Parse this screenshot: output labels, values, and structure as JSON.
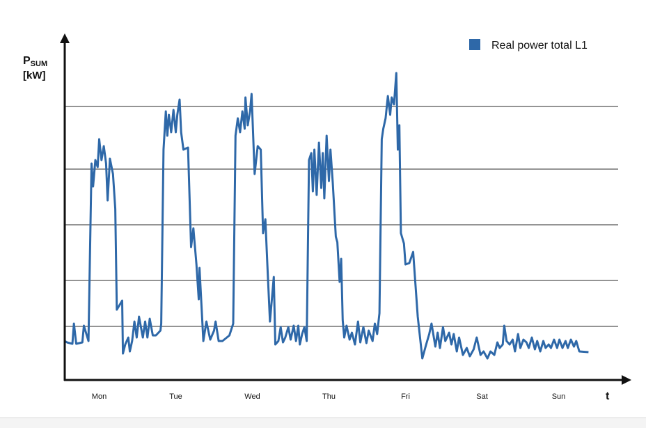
{
  "chart_data": {
    "type": "line",
    "ylabel": {
      "text": "P",
      "sub": "SUM",
      "unit": "[kW]"
    },
    "xlabel": "t",
    "xlim": [
      0,
      7.36
    ],
    "xticks": [
      {
        "value": 0.45,
        "label": "Mon"
      },
      {
        "value": 1.45,
        "label": "Tue"
      },
      {
        "value": 2.45,
        "label": "Wed"
      },
      {
        "value": 3.45,
        "label": "Thu"
      },
      {
        "value": 4.45,
        "label": "Fri"
      },
      {
        "value": 5.45,
        "label": "Sat"
      },
      {
        "value": 6.45,
        "label": "Sun"
      }
    ],
    "ylim": [
      0,
      98
    ],
    "yticks": [
      15.4,
      28.6,
      44.6,
      60.6,
      78.6
    ],
    "grid": true,
    "legend": "top-right",
    "x": [
      0,
      0.03,
      0.1,
      0.12,
      0.15,
      0.23,
      0.25,
      0.31,
      0.35,
      0.37,
      0.4,
      0.43,
      0.45,
      0.48,
      0.51,
      0.54,
      0.56,
      0.59,
      0.63,
      0.66,
      0.68,
      0.75,
      0.76,
      0.79,
      0.83,
      0.85,
      0.88,
      0.91,
      0.94,
      0.97,
      1.02,
      1.05,
      1.08,
      1.11,
      1.15,
      1.19,
      1.25,
      1.26,
      1.29,
      1.32,
      1.34,
      1.36,
      1.39,
      1.42,
      1.45,
      1.47,
      1.5,
      1.52,
      1.55,
      1.61,
      1.65,
      1.68,
      1.72,
      1.75,
      1.76,
      1.81,
      1.85,
      1.9,
      1.95,
      1.97,
      2.01,
      2.06,
      2.15,
      2.2,
      2.23,
      2.26,
      2.29,
      2.32,
      2.35,
      2.36,
      2.39,
      2.42,
      2.44,
      2.48,
      2.52,
      2.56,
      2.59,
      2.62,
      2.65,
      2.68,
      2.73,
      2.75,
      2.79,
      2.82,
      2.85,
      2.88,
      2.92,
      2.95,
      2.99,
      3.02,
      3.05,
      3.07,
      3.1,
      3.13,
      3.16,
      3.19,
      3.22,
      3.24,
      3.26,
      3.29,
      3.32,
      3.35,
      3.37,
      3.39,
      3.42,
      3.45,
      3.47,
      3.5,
      3.54,
      3.56,
      3.59,
      3.61,
      3.63,
      3.65,
      3.68,
      3.72,
      3.75,
      3.79,
      3.83,
      3.86,
      3.9,
      3.94,
      3.97,
      4.02,
      4.05,
      4.08,
      4.11,
      4.14,
      4.16,
      4.19,
      4.22,
      4.25,
      4.27,
      4.3,
      4.33,
      4.35,
      4.37,
      4.39,
      4.43,
      4.45,
      4.5,
      4.55,
      4.61,
      4.67,
      4.72,
      4.76,
      4.79,
      4.84,
      4.87,
      4.9,
      4.94,
      4.97,
      5.02,
      5.05,
      5.08,
      5.12,
      5.15,
      5.2,
      5.25,
      5.29,
      5.34,
      5.38,
      5.43,
      5.47,
      5.52,
      5.56,
      5.61,
      5.65,
      5.68,
      5.72,
      5.74,
      5.77,
      5.81,
      5.85,
      5.88,
      5.92,
      5.95,
      5.99,
      6.03,
      6.06,
      6.1,
      6.14,
      6.17,
      6.21,
      6.25,
      6.28,
      6.32,
      6.35,
      6.39,
      6.43,
      6.46,
      6.5,
      6.54,
      6.57,
      6.61,
      6.65,
      6.68,
      6.72,
      6.84
    ],
    "series": [
      {
        "name": "Real power total L1",
        "color": "#2e68a8",
        "values": [
          11.2,
          10.8,
          10.4,
          16.2,
          10.4,
          10.8,
          15.6,
          11.2,
          62.2,
          55.6,
          63.2,
          61.2,
          69.2,
          63.2,
          67.2,
          62.2,
          51.6,
          63.6,
          59.2,
          49.2,
          20.2,
          22.8,
          7.6,
          10.2,
          12.2,
          8.2,
          11.2,
          16.8,
          12.2,
          18.2,
          12.2,
          16.8,
          12.2,
          17.6,
          12.8,
          12.8,
          14.2,
          16.2,
          66.2,
          77.2,
          70.2,
          76.2,
          71.2,
          77.6,
          71.2,
          76.2,
          80.6,
          71.2,
          66.2,
          66.8,
          38.2,
          43.6,
          33.2,
          23.2,
          32.2,
          11.2,
          16.8,
          11.6,
          14.2,
          16.8,
          11.2,
          11.2,
          12.8,
          16.2,
          70.2,
          75.2,
          71.2,
          77.2,
          72.2,
          81.2,
          73.2,
          77.2,
          82.2,
          59.2,
          67.2,
          66.2,
          42.2,
          46.2,
          31.2,
          16.8,
          29.6,
          10.2,
          11.2,
          15.2,
          10.8,
          12.2,
          15.2,
          11.6,
          15.6,
          11.2,
          15.6,
          10.2,
          13.2,
          15.2,
          11.2,
          63.2,
          65.2,
          54.2,
          66.2,
          53.2,
          68.2,
          55.2,
          65.2,
          52.2,
          70.2,
          57.2,
          66.2,
          56.8,
          41.2,
          39.6,
          28.2,
          34.8,
          17.2,
          12.2,
          15.6,
          11.6,
          13.6,
          10.2,
          16.8,
          10.8,
          15.2,
          10.6,
          14.2,
          11.2,
          16.2,
          13.2,
          19.2,
          69.2,
          72.2,
          75.2,
          81.6,
          76.2,
          81.2,
          79.2,
          88.2,
          66.2,
          73.2,
          42.2,
          39.2,
          33.2,
          33.6,
          36.8,
          18.2,
          6.2,
          10.2,
          13.2,
          16.2,
          9.6,
          13.6,
          9.2,
          15.2,
          11.2,
          13.6,
          10.2,
          13.2,
          8.2,
          12.2,
          7.2,
          9.2,
          6.8,
          8.8,
          12.2,
          7.2,
          8.2,
          6.2,
          8.2,
          7.2,
          10.8,
          9.2,
          10.2,
          15.6,
          11.2,
          10.2,
          11.6,
          8.2,
          13.2,
          9.2,
          11.6,
          10.8,
          9.2,
          12.2,
          8.8,
          11.2,
          8.2,
          11.2,
          9.2,
          10.2,
          9.2,
          11.6,
          9.2,
          11.6,
          9.2,
          11.2,
          9.2,
          11.6,
          9.6,
          11.2,
          8.2,
          8.0
        ]
      }
    ]
  }
}
